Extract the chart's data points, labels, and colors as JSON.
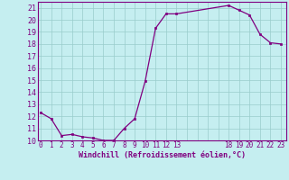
{
  "x": [
    0,
    1,
    2,
    3,
    4,
    5,
    6,
    7,
    8,
    9,
    10,
    11,
    12,
    13,
    18,
    19,
    20,
    21,
    22,
    23
  ],
  "y": [
    12.3,
    11.8,
    10.4,
    10.5,
    10.3,
    10.2,
    10.0,
    10.0,
    11.0,
    11.8,
    14.9,
    19.3,
    20.5,
    20.5,
    21.2,
    20.8,
    20.4,
    18.8,
    18.1,
    18.0
  ],
  "line_color": "#800080",
  "marker_color": "#800080",
  "bg_color": "#C5EEF0",
  "grid_color": "#99CCCC",
  "xlabel": "Windchill (Refroidissement éolien,°C)",
  "xlabel_color": "#800080",
  "tick_color": "#800080",
  "ylim": [
    10,
    21.5
  ],
  "yticks": [
    10,
    11,
    12,
    13,
    14,
    15,
    16,
    17,
    18,
    19,
    20,
    21
  ],
  "xtick_labels": [
    "0",
    "1",
    "2",
    "3",
    "4",
    "5",
    "6",
    "7",
    "8",
    "9",
    "10",
    "11",
    "12",
    "13",
    "",
    "",
    "",
    "",
    "18",
    "19",
    "20",
    "21",
    "22",
    "23"
  ],
  "xtick_positions": [
    0,
    1,
    2,
    3,
    4,
    5,
    6,
    7,
    8,
    9,
    10,
    11,
    12,
    13,
    14,
    15,
    16,
    17,
    18,
    19,
    20,
    21,
    22,
    23
  ],
  "xlim": [
    -0.3,
    23.5
  ]
}
